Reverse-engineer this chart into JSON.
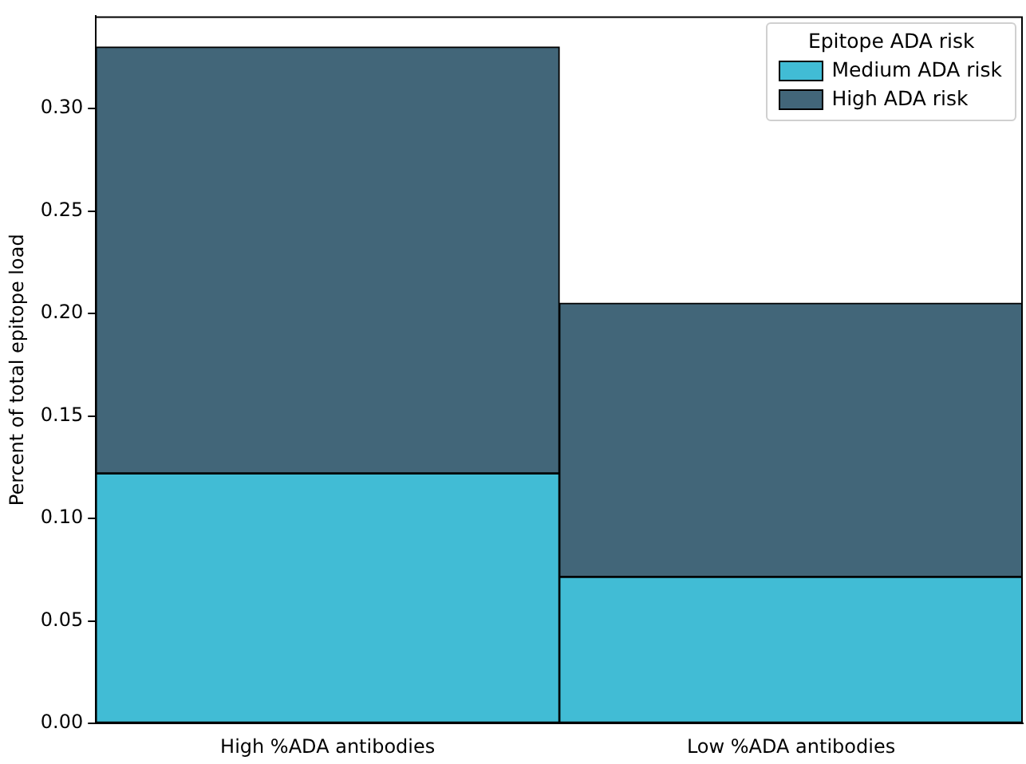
{
  "chart_data": {
    "type": "bar",
    "stacked": true,
    "ylabel": "Percent of total epitope load",
    "legend_title": "Epitope ADA risk",
    "legend": "top right",
    "grid": false,
    "categories": [
      "High %ADA antibodies",
      "Low %ADA antibodies"
    ],
    "series": [
      {
        "name": "Medium ADA risk",
        "color": "#41bcd5",
        "values": [
          0.122,
          0.0715
        ]
      },
      {
        "name": "High ADA risk",
        "color": "#426679",
        "values": [
          0.208,
          0.1335
        ]
      }
    ],
    "ylim": [
      0,
      0.345
    ],
    "yticks": [
      {
        "value": 0,
        "label": "0.00"
      },
      {
        "value": 0.05,
        "label": "0.05"
      },
      {
        "value": 0.1,
        "label": "0.10"
      },
      {
        "value": 0.15,
        "label": "0.15"
      },
      {
        "value": 0.2,
        "label": "0.20"
      },
      {
        "value": 0.25,
        "label": "0.25"
      },
      {
        "value": 0.3,
        "label": "0.30"
      }
    ]
  }
}
